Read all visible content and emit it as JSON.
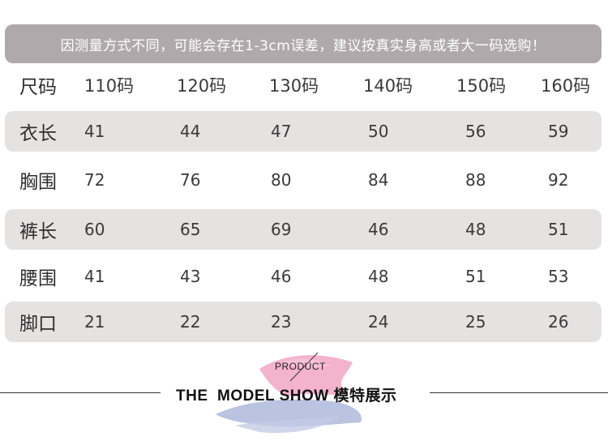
{
  "notice": "因测量方式不同，可能会存在1-3cm误差，建议按真实身高或者大一码选购！",
  "table": {
    "header_label": "尺码",
    "sizes": [
      "110码",
      "120码",
      "130码",
      "140码",
      "150码",
      "160码"
    ],
    "rows": [
      {
        "label": "衣长",
        "values": [
          "41",
          "44",
          "47",
          "50",
          "56",
          "59"
        ]
      },
      {
        "label": "胸围",
        "values": [
          "72",
          "76",
          "80",
          "84",
          "88",
          "92"
        ]
      },
      {
        "label": "裤长",
        "values": [
          "60",
          "65",
          "69",
          "46",
          "48",
          "51"
        ]
      },
      {
        "label": "腰围",
        "values": [
          "41",
          "43",
          "46",
          "48",
          "51",
          "53"
        ]
      },
      {
        "label": "脚口",
        "values": [
          "21",
          "22",
          "23",
          "24",
          "25",
          "26"
        ]
      }
    ]
  },
  "banner": {
    "product": "PRODUCT",
    "title": "THE  MODEL SHOW 模特展示"
  },
  "colors": {
    "notice_bg": "#b0a9ab",
    "row_shade": "#e5e2e2",
    "brush_pink": "#f2a6c4",
    "brush_blue": "#a9b4d8"
  }
}
